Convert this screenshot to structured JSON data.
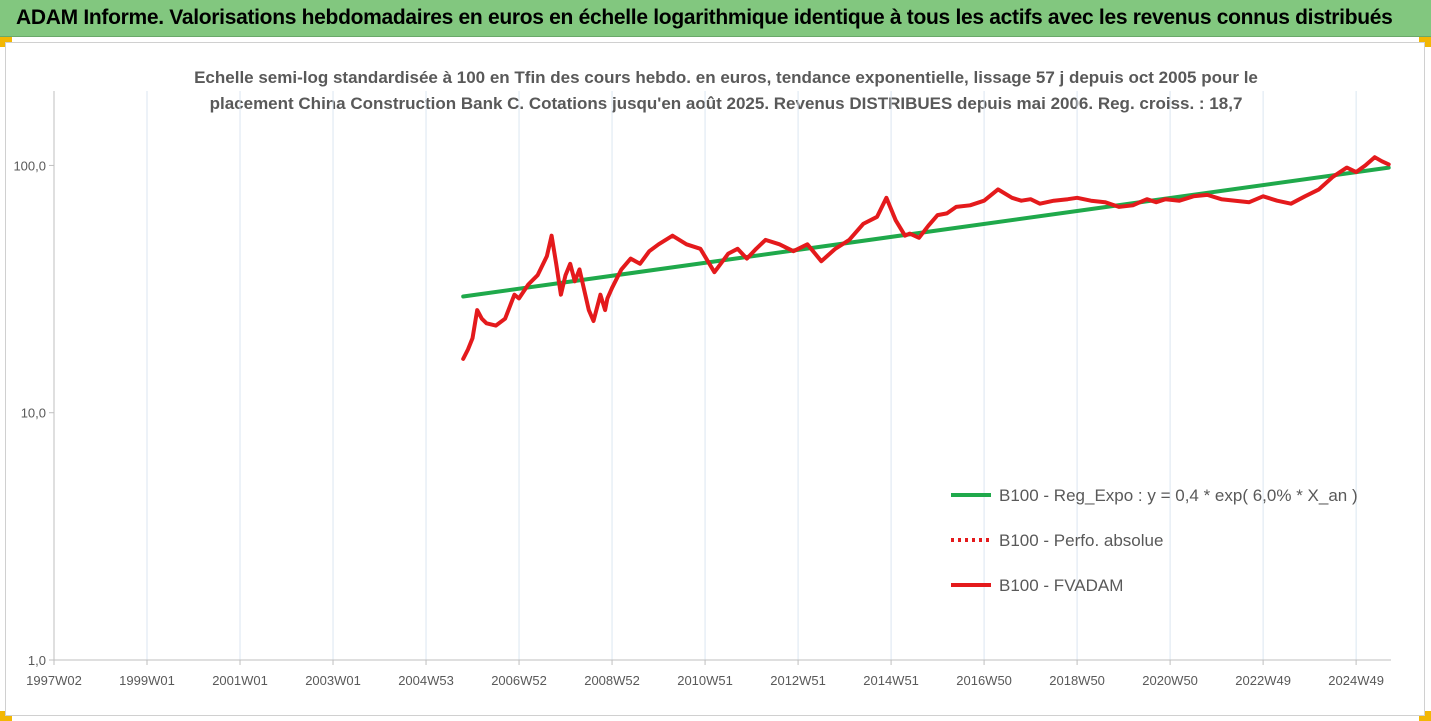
{
  "banner": {
    "title": "ADAM Informe. Valorisations hebdomadaires en euros en échelle logarithmique identique à tous les actifs avec les revenus connus distribués"
  },
  "colors": {
    "banner_bg": "#82c77f",
    "trend": "#1fa94b",
    "series": "#e41a1c",
    "grid": "#dbe6f1",
    "corner": "#f2b705"
  },
  "chart_data": {
    "type": "line",
    "title_lines": [
      "Echelle semi-log standardisée à 100 en Tfin des cours hebdo. en euros, tendance exponentielle, lissage 57 j depuis oct 2005 pour le",
      "placement China Construction Bank C. Cotations jusqu'en août 2025. Revenus DISTRIBUES depuis mai 2006. Reg. croiss. : 18,7"
    ],
    "y_scale": "log",
    "ylim": [
      1,
      200
    ],
    "y_ticks": [
      {
        "value": 1,
        "label": "1,0"
      },
      {
        "value": 10,
        "label": "10,0"
      },
      {
        "value": 100,
        "label": "100,0"
      }
    ],
    "xlim": [
      1997.0,
      2025.75
    ],
    "x_ticks": [
      {
        "value": 1997.0,
        "label": "1997W02"
      },
      {
        "value": 1999.0,
        "label": "1999W01"
      },
      {
        "value": 2001.0,
        "label": "2001W01"
      },
      {
        "value": 2003.0,
        "label": "2003W01"
      },
      {
        "value": 2005.0,
        "label": "2004W53"
      },
      {
        "value": 2007.0,
        "label": "2006W52"
      },
      {
        "value": 2009.0,
        "label": "2008W52"
      },
      {
        "value": 2011.0,
        "label": "2010W51"
      },
      {
        "value": 2013.0,
        "label": "2012W51"
      },
      {
        "value": 2015.0,
        "label": "2014W51"
      },
      {
        "value": 2017.0,
        "label": "2016W50"
      },
      {
        "value": 2019.0,
        "label": "2018W50"
      },
      {
        "value": 2021.0,
        "label": "2020W50"
      },
      {
        "value": 2023.0,
        "label": "2022W49"
      },
      {
        "value": 2025.0,
        "label": "2024W49"
      }
    ],
    "grid": "vertical",
    "legend_position": "bottom-right",
    "series": [
      {
        "name": "B100 - Reg_Expo : y = 0,4 * exp( 6,0% *  X_an )",
        "style": "solid",
        "color": "#1fa94b",
        "x": [
          2005.8,
          2025.7
        ],
        "y": [
          29.5,
          98
        ]
      },
      {
        "name": "B100 - Perfo. absolue",
        "style": "dotted",
        "color": "#e41a1c",
        "x": [],
        "y": []
      },
      {
        "name": "B100 - FVADAM",
        "style": "solid",
        "color": "#e41a1c",
        "x": [
          2005.8,
          2005.9,
          2006.0,
          2006.1,
          2006.2,
          2006.3,
          2006.5,
          2006.7,
          2006.9,
          2007.0,
          2007.2,
          2007.4,
          2007.6,
          2007.7,
          2007.8,
          2007.9,
          2008.0,
          2008.1,
          2008.2,
          2008.3,
          2008.5,
          2008.6,
          2008.75,
          2008.85,
          2008.9,
          2009.0,
          2009.2,
          2009.4,
          2009.6,
          2009.8,
          2010.0,
          2010.3,
          2010.6,
          2010.9,
          2011.2,
          2011.5,
          2011.7,
          2011.9,
          2012.1,
          2012.3,
          2012.6,
          2012.9,
          2013.2,
          2013.5,
          2013.8,
          2014.1,
          2014.4,
          2014.7,
          2014.9,
          2015.1,
          2015.3,
          2015.4,
          2015.6,
          2015.8,
          2016.0,
          2016.2,
          2016.4,
          2016.7,
          2017.0,
          2017.3,
          2017.6,
          2017.8,
          2018.0,
          2018.2,
          2018.5,
          2018.8,
          2019.0,
          2019.3,
          2019.6,
          2019.9,
          2020.2,
          2020.5,
          2020.7,
          2020.9,
          2021.2,
          2021.5,
          2021.8,
          2022.1,
          2022.4,
          2022.7,
          2023.0,
          2023.3,
          2023.6,
          2023.9,
          2024.2,
          2024.5,
          2024.8,
          2025.0,
          2025.2,
          2025.4,
          2025.55,
          2025.7
        ],
        "y": [
          16.5,
          18,
          20,
          26,
          24,
          23,
          22.5,
          24,
          30,
          29,
          33,
          36,
          43,
          52,
          40,
          30,
          36,
          40,
          34,
          38,
          26,
          23.5,
          30,
          26,
          29,
          32,
          38,
          42,
          40,
          45,
          48,
          52,
          48,
          46,
          37,
          44,
          46,
          42,
          46,
          50,
          48,
          45,
          48,
          41,
          46,
          50,
          58,
          62,
          74,
          60,
          52,
          53,
          51,
          57,
          63,
          64,
          68,
          69,
          72,
          80,
          74,
          72,
          73,
          70,
          72,
          73,
          74,
          72,
          71,
          68,
          69,
          73,
          71,
          73,
          72,
          75,
          76,
          73,
          72,
          71,
          75,
          72,
          70,
          75,
          80,
          90,
          98,
          94,
          100,
          108,
          104,
          101
        ]
      }
    ]
  }
}
